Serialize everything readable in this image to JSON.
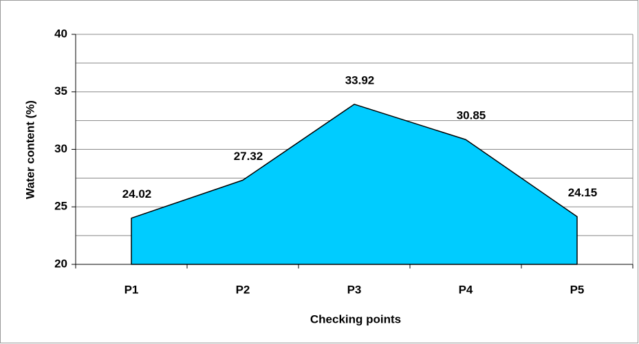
{
  "chart_data": {
    "type": "area",
    "x_label": "Checking points",
    "y_label": "Water content (%)",
    "categories": [
      "P1",
      "P2",
      "P3",
      "P4",
      "P5"
    ],
    "values": [
      24.02,
      27.32,
      33.92,
      30.85,
      24.15
    ],
    "color": "#00ccff",
    "ylim": [
      20,
      40
    ],
    "yticks": [
      20,
      25,
      30,
      35,
      40
    ],
    "grid_lines": [
      20,
      22.5,
      25,
      27.5,
      30,
      32.5,
      35,
      37.5,
      40
    ],
    "grid": true
  }
}
